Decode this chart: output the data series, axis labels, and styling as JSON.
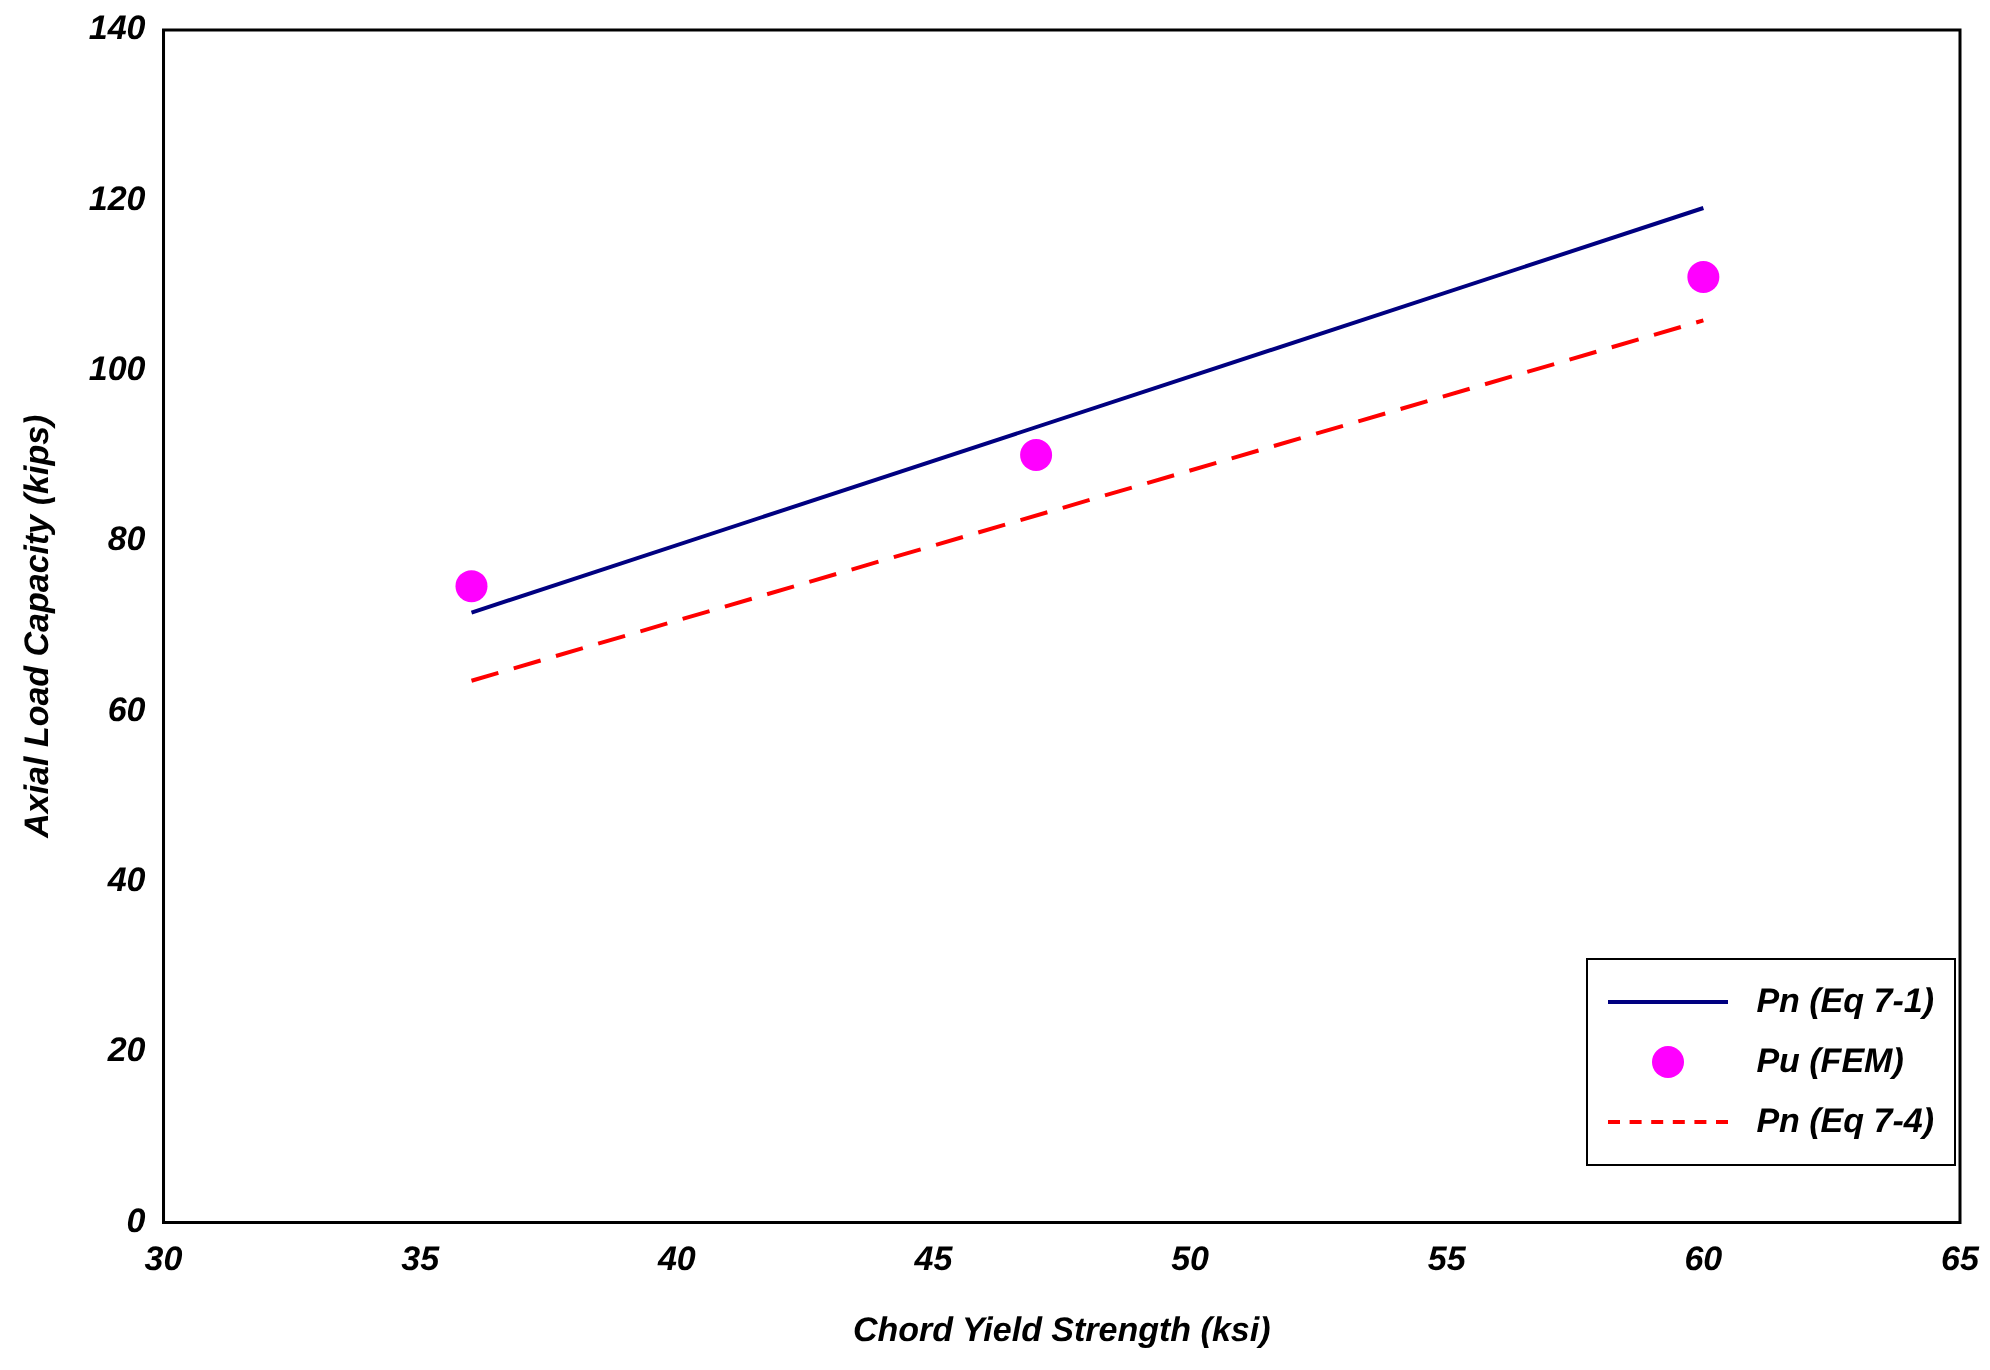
{
  "chart_data": {
    "type": "line",
    "xlabel": "Chord Yield Strength (ksi)",
    "ylabel": "Axial Load Capacity (kips)",
    "xlim": [
      30,
      65
    ],
    "xticks": [
      30,
      35,
      40,
      45,
      50,
      55,
      60,
      65
    ],
    "ylim": [
      0,
      140
    ],
    "yticks": [
      0,
      20,
      40,
      60,
      80,
      100,
      120,
      140
    ],
    "grid": false,
    "legend": "bottom right",
    "series": [
      {
        "name": "Pn (Eq 7-1)",
        "type": "line",
        "color": "#000080",
        "x": [
          36,
          60
        ],
        "values": [
          71.6,
          119.1
        ],
        "line_style": "solid",
        "marker": "none"
      },
      {
        "name": "Pu (FEM)",
        "type": "scatter",
        "color": "#ff00ff",
        "x": [
          36,
          47,
          60
        ],
        "values": [
          74.7,
          90.1,
          111
        ],
        "marker": "circle"
      },
      {
        "name": "Pn (Eq 7-4)",
        "type": "line",
        "color": "#ff0000",
        "x": [
          36,
          60
        ],
        "values": [
          63.6,
          105.9
        ],
        "line_style": "dashed",
        "marker": "none"
      }
    ]
  }
}
